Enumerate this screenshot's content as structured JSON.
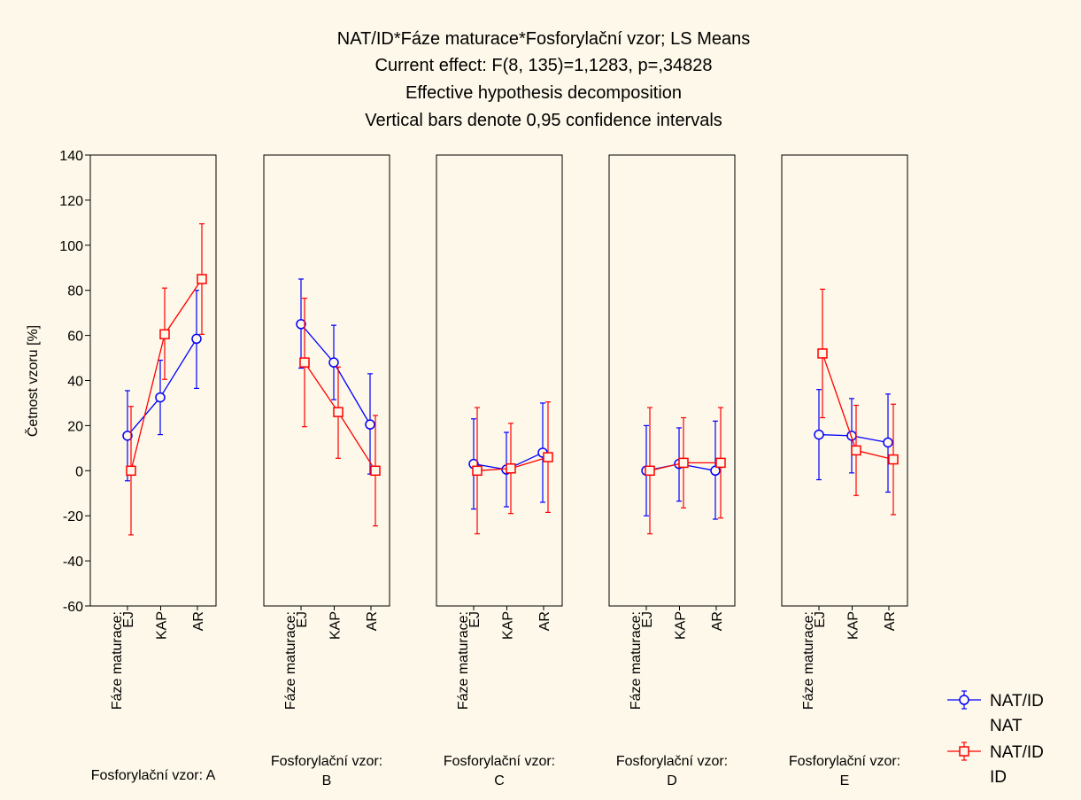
{
  "title_lines": [
    "NAT/ID*Fáze maturace*Fosforylační vzor; LS Means",
    "Current effect: F(8, 135)=1,1283, p=,34828",
    "Effective hypothesis decomposition",
    "Vertical bars denote 0,95 confidence intervals"
  ],
  "colors": {
    "background": "#fdf8e9",
    "nat": "#0000ff",
    "id": "#ff0000"
  },
  "chart_data": {
    "type": "line",
    "ylabel": "Četnost vzoru [%]",
    "ylim": [
      -60,
      140
    ],
    "yticks": [
      140,
      120,
      100,
      80,
      60,
      40,
      20,
      0,
      -20,
      -40,
      -60
    ],
    "x_factor_label": "Fáze maturace:",
    "categories": [
      "EJ",
      "KAP",
      "AR"
    ],
    "panel_factor_label": "Fosforylační vzor:",
    "panels": [
      {
        "label": "Fosforylační vzor: A",
        "level": "A",
        "series": [
          {
            "name": "NAT",
            "values": [
              15.5,
              32.5,
              58.5
            ],
            "lower": [
              -4.5,
              16,
              36.5
            ],
            "upper": [
              35.5,
              49,
              80
            ]
          },
          {
            "name": "ID",
            "values": [
              0,
              60.5,
              85
            ],
            "lower": [
              -28.5,
              40.5,
              60.5
            ],
            "upper": [
              28.5,
              81,
              109.5
            ]
          }
        ]
      },
      {
        "label": "Fosforylační vzor: B",
        "level": "B",
        "series": [
          {
            "name": "NAT",
            "values": [
              65,
              48,
              20.5
            ],
            "lower": [
              45.5,
              31.5,
              -1.5
            ],
            "upper": [
              85,
              64.5,
              43
            ]
          },
          {
            "name": "ID",
            "values": [
              48,
              26,
              0
            ],
            "lower": [
              19.5,
              5.5,
              -24.5
            ],
            "upper": [
              76.5,
              46,
              24.5
            ]
          }
        ]
      },
      {
        "label": "Fosforylační vzor: C",
        "level": "C",
        "series": [
          {
            "name": "NAT",
            "values": [
              3,
              0.5,
              8
            ],
            "lower": [
              -17,
              -16,
              -14
            ],
            "upper": [
              23,
              17,
              30
            ]
          },
          {
            "name": "ID",
            "values": [
              0,
              1,
              6
            ],
            "lower": [
              -28,
              -19,
              -18.5
            ],
            "upper": [
              28,
              21,
              30.5
            ]
          }
        ]
      },
      {
        "label": "Fosforylační vzor: D",
        "level": "D",
        "series": [
          {
            "name": "NAT",
            "values": [
              0,
              3,
              0
            ],
            "lower": [
              -20,
              -13.5,
              -21.5
            ],
            "upper": [
              20,
              19,
              22
            ]
          },
          {
            "name": "ID",
            "values": [
              0,
              3.5,
              3.5
            ],
            "lower": [
              -28,
              -16.5,
              -21
            ],
            "upper": [
              28,
              23.5,
              28
            ]
          }
        ]
      },
      {
        "label": "Fosforylační vzor: E",
        "level": "E",
        "series": [
          {
            "name": "NAT",
            "values": [
              16,
              15.5,
              12.5
            ],
            "lower": [
              -4,
              -1,
              -9.5
            ],
            "upper": [
              36,
              32,
              34
            ]
          },
          {
            "name": "ID",
            "values": [
              52,
              9,
              5
            ],
            "lower": [
              23.5,
              -11,
              -19.5
            ],
            "upper": [
              80.5,
              29,
              29.5
            ]
          }
        ]
      }
    ],
    "legend": {
      "placement": "bottom-right",
      "entries": [
        {
          "label_line1": "NAT/ID",
          "label_line2": "NAT",
          "marker": "circle"
        },
        {
          "label_line1": "NAT/ID",
          "label_line2": "ID",
          "marker": "square"
        }
      ]
    }
  }
}
